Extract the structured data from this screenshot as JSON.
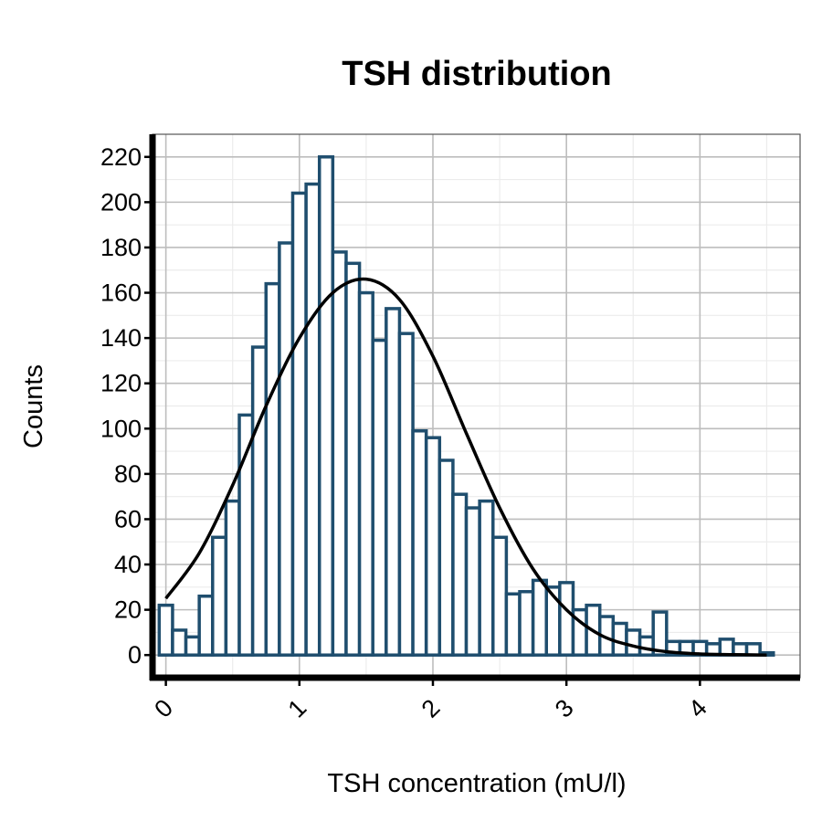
{
  "chart_data": {
    "type": "bar",
    "subtype": "histogram",
    "title": "TSH distribution",
    "xlabel": "TSH concentration (mU/l)",
    "ylabel": "Counts",
    "xlim": [
      -0.1,
      4.75
    ],
    "ylim": [
      -10,
      230
    ],
    "x_ticks": [
      0,
      1,
      2,
      3,
      4
    ],
    "x_tick_labels": [
      "0",
      "1",
      "2",
      "3",
      "4"
    ],
    "y_ticks": [
      0,
      20,
      40,
      60,
      80,
      100,
      120,
      140,
      160,
      180,
      200,
      220
    ],
    "y_tick_labels": [
      "0",
      "20",
      "40",
      "60",
      "80",
      "100",
      "120",
      "140",
      "160",
      "180",
      "200",
      "220"
    ],
    "bin_width": 0.1,
    "bin_start": -0.05,
    "series": [
      {
        "type": "histogram",
        "values": [
          22,
          11,
          8,
          26,
          52,
          68,
          106,
          136,
          164,
          182,
          204,
          208,
          220,
          178,
          173,
          160,
          139,
          153,
          142,
          99,
          96,
          86,
          71,
          65,
          68,
          52,
          27,
          28,
          33,
          30,
          32,
          20,
          22,
          17,
          14,
          11,
          8,
          19,
          6,
          6,
          6,
          5,
          7,
          5,
          5,
          1
        ]
      },
      {
        "type": "line",
        "description_key": "normal-fit",
        "x": [
          0,
          0.25,
          0.5,
          0.75,
          1.0,
          1.25,
          1.5,
          1.75,
          2.0,
          2.25,
          2.5,
          2.75,
          3.0,
          3.25,
          3.5,
          3.75,
          4.0,
          4.25,
          4.5
        ],
        "y": [
          25,
          45,
          75,
          110,
          140,
          160,
          166,
          157,
          132,
          98,
          65,
          38,
          20,
          9,
          4,
          1.5,
          0.5,
          0.2,
          0
        ]
      }
    ],
    "grid": true,
    "legend": "none",
    "colors": {
      "bar_outline": "#1f4e6e",
      "bar_fill": "#ffffff",
      "curve": "#000000"
    }
  }
}
